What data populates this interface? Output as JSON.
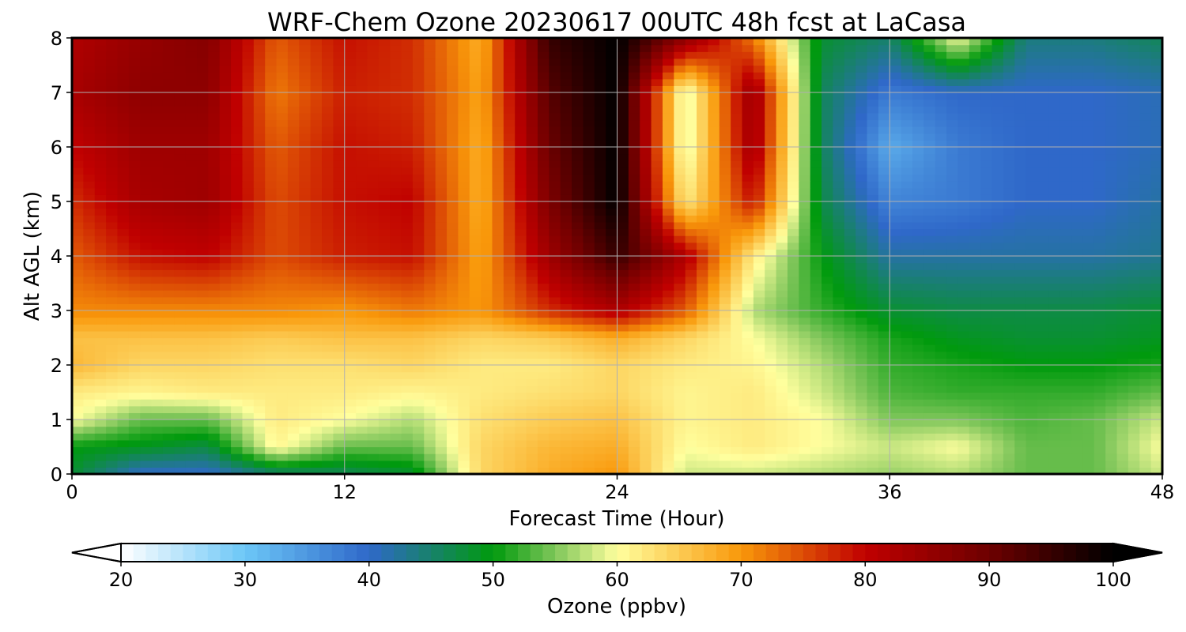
{
  "chart_data": {
    "type": "heatmap",
    "title": "WRF-Chem Ozone  20230617 00UTC 48h fcst at LaCasa",
    "xlabel": "Forecast Time (Hour)",
    "ylabel": "Alt AGL (km)",
    "xlim": [
      0,
      48
    ],
    "ylim": [
      0,
      8
    ],
    "xticks": [
      "0",
      "12",
      "24",
      "36",
      "48"
    ],
    "yticks": [
      "0",
      "1",
      "2",
      "3",
      "4",
      "5",
      "6",
      "7",
      "8"
    ],
    "grid": true,
    "colorbar": {
      "label": "Ozone  (ppbv)",
      "min": 20,
      "max": 100,
      "extend": "both",
      "ticks": [
        "20",
        "30",
        "40",
        "50",
        "60",
        "70",
        "80",
        "90",
        "100"
      ],
      "colors": [
        {
          "v": 20,
          "c": "#ffffff"
        },
        {
          "v": 30,
          "c": "#6cc7f7"
        },
        {
          "v": 40,
          "c": "#2f68c9"
        },
        {
          "v": 50,
          "c": "#009a0d"
        },
        {
          "v": 55,
          "c": "#7fc65a"
        },
        {
          "v": 60,
          "c": "#ffff9e"
        },
        {
          "v": 70,
          "c": "#f9980a"
        },
        {
          "v": 80,
          "c": "#c00000"
        },
        {
          "v": 90,
          "c": "#6d0000"
        },
        {
          "v": 100,
          "c": "#000000"
        }
      ]
    },
    "x_hours": [
      0,
      3,
      6,
      9,
      12,
      15,
      18,
      21,
      24,
      27,
      30,
      33,
      36,
      39,
      42,
      45,
      48
    ],
    "y_km": [
      0,
      0.5,
      1,
      1.5,
      2,
      2.5,
      3,
      4,
      5,
      6,
      7,
      8
    ],
    "values": [
      [
        48,
        40,
        40,
        45,
        46,
        48,
        64,
        68,
        70,
        58,
        58,
        57,
        56,
        57,
        54,
        54,
        58
      ],
      [
        50,
        49,
        47,
        61,
        54,
        54,
        64,
        67,
        68,
        60,
        62,
        60,
        58,
        60,
        54,
        54,
        60
      ],
      [
        60,
        54,
        54,
        62,
        60,
        57,
        63,
        65,
        66,
        61,
        62,
        60,
        55,
        55,
        53,
        54,
        58
      ],
      [
        62,
        61,
        62,
        62,
        62,
        61,
        62,
        63,
        64,
        61,
        62,
        58,
        53,
        52,
        52,
        52,
        54
      ],
      [
        67,
        64,
        64,
        63,
        63,
        64,
        62,
        62,
        64,
        62,
        61,
        57,
        52,
        51,
        50,
        50,
        51
      ],
      [
        66,
        66,
        66,
        65,
        66,
        66,
        64,
        65,
        68,
        64,
        60,
        55,
        51,
        49,
        48,
        48,
        49
      ],
      [
        71,
        71,
        71,
        71,
        70,
        72,
        70,
        77,
        82,
        74,
        57,
        52,
        48,
        47,
        47,
        47,
        48
      ],
      [
        74,
        79,
        80,
        75,
        78,
        79,
        69,
        84,
        95,
        82,
        62,
        50,
        42,
        42,
        42,
        42,
        43
      ],
      [
        77,
        83,
        84,
        75,
        79,
        80,
        68,
        88,
        100,
        62,
        79,
        47,
        37,
        38,
        40,
        40,
        42
      ],
      [
        80,
        84,
        84,
        74,
        79,
        78,
        68,
        90,
        100,
        58,
        84,
        46,
        33,
        38,
        40,
        40,
        41
      ],
      [
        83,
        86,
        86,
        72,
        78,
        77,
        69,
        92,
        100,
        58,
        85,
        46,
        38,
        40,
        40,
        40,
        41
      ],
      [
        82,
        85,
        87,
        74,
        79,
        77,
        68,
        95,
        100,
        86,
        72,
        48,
        45,
        60,
        44,
        44,
        46
      ]
    ]
  }
}
